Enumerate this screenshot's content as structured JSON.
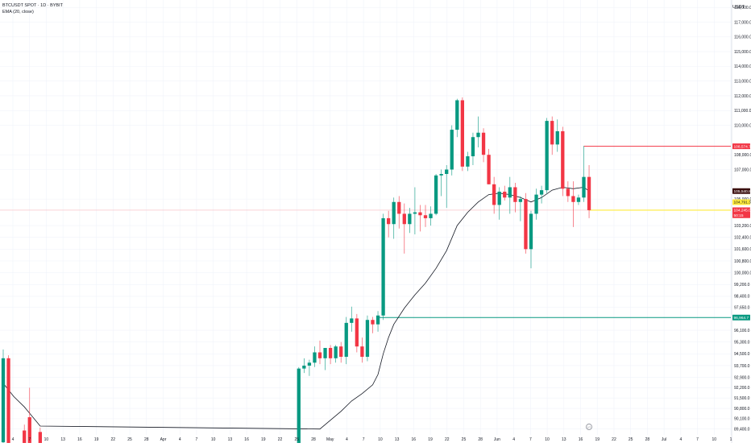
{
  "header": {
    "title": "BTCUSDT SPOT · 1D · BYBIT",
    "indicator": "EMA (20, close)"
  },
  "price_axis": {
    "unit": "USDT",
    "tick_labels": [
      "118,000.0",
      "117,000.0",
      "116,000.0",
      "115,000.0",
      "114,000.0",
      "113,000.0",
      "112,000.0",
      "111,000.0",
      "110,000.0",
      "108,000.0",
      "107,000.0",
      "105,000.0",
      "103,200.0",
      "102,400.0",
      "101,600.0",
      "100,800.0",
      "100,000.0",
      "99,200.0",
      "98,400.0",
      "97,650.0",
      "96,100.0",
      "95,300.0",
      "94,500.0",
      "93,700.0",
      "92,900.0",
      "92,200.0",
      "91,500.0",
      "90,800.0",
      "90,100.0",
      "89,400.0"
    ]
  },
  "time_axis": {
    "labels": [
      "4",
      "7",
      "10",
      "13",
      "16",
      "19",
      "22",
      "25",
      "28",
      "Apr",
      "4",
      "7",
      "10",
      "13",
      "16",
      "19",
      "22",
      "25",
      "28",
      "May",
      "4",
      "7",
      "10",
      "13",
      "16",
      "19",
      "22",
      "25",
      "28",
      "Jun",
      "4",
      "7",
      "10",
      "13",
      "16",
      "19",
      "22",
      "25",
      "28",
      "Jul",
      "4",
      "7",
      "10",
      "1"
    ]
  },
  "price_tags": [
    {
      "text": "108,574.7",
      "value": 108574.7,
      "bg": "#f23645"
    },
    {
      "text": "105,540.8",
      "value": 105540.8,
      "bg": "#3a0f0f"
    },
    {
      "text": "104,791.3",
      "value": 104791.3,
      "bg": "#ffeb3b"
    },
    {
      "text": "104,245.0",
      "value": 104245.0,
      "bg": "#f23645"
    },
    {
      "text": "50:15",
      "value": 103900,
      "bg": "#f23645"
    },
    {
      "text": "96,964.7",
      "value": 96964.7,
      "bg": "#089981"
    }
  ],
  "colors": {
    "up": "#089981",
    "down": "#f23645",
    "ema": "#131722",
    "grid": "#f0f3fa",
    "resistance": "#f23645",
    "support": "#089981",
    "last": "#ffeb3b"
  },
  "chart_data": {
    "type": "candlestick",
    "title": "BTCUSDT SPOT · 1D · BYBIT",
    "series_name": "EMA (20, close)",
    "grid": true,
    "ylim": [
      89000,
      118500
    ],
    "levels": [
      {
        "name": "resistance",
        "value": 108574.7,
        "color": "#f23645"
      },
      {
        "name": "support",
        "value": 96964.7,
        "color": "#089981"
      },
      {
        "name": "last",
        "value": 104245.0,
        "color": "#ffeb3b"
      }
    ],
    "candles": [
      {
        "x": 0,
        "o": 88500,
        "h": 94800,
        "l": 88200,
        "c": 94200
      },
      {
        "x": 1,
        "o": 94200,
        "h": 94400,
        "l": 88000,
        "c": 88300
      },
      {
        "x": 4,
        "o": 89300,
        "h": 89700,
        "l": 88000,
        "c": 88100
      },
      {
        "x": 5,
        "o": 90200,
        "h": 92200,
        "l": 87900,
        "c": 88000
      },
      {
        "x": 7,
        "o": 89200,
        "h": 89500,
        "l": 88000,
        "c": 88100
      },
      {
        "x": 56,
        "o": 88000,
        "h": 93600,
        "l": 87800,
        "c": 93500
      },
      {
        "x": 57,
        "o": 93500,
        "h": 94200,
        "l": 93200,
        "c": 93700
      },
      {
        "x": 58,
        "o": 93700,
        "h": 94100,
        "l": 93000,
        "c": 93900
      },
      {
        "x": 59,
        "o": 93900,
        "h": 95000,
        "l": 93600,
        "c": 94600
      },
      {
        "x": 60,
        "o": 94600,
        "h": 95400,
        "l": 93800,
        "c": 94200
      },
      {
        "x": 61,
        "o": 94200,
        "h": 94900,
        "l": 93400,
        "c": 94900
      },
      {
        "x": 62,
        "o": 94900,
        "h": 95100,
        "l": 93800,
        "c": 94200
      },
      {
        "x": 63,
        "o": 94200,
        "h": 95100,
        "l": 93900,
        "c": 95000
      },
      {
        "x": 64,
        "o": 95000,
        "h": 95300,
        "l": 93900,
        "c": 94300
      },
      {
        "x": 65,
        "o": 94300,
        "h": 97000,
        "l": 93800,
        "c": 96600
      },
      {
        "x": 66,
        "o": 96600,
        "h": 97700,
        "l": 96000,
        "c": 96900
      },
      {
        "x": 67,
        "o": 96900,
        "h": 97200,
        "l": 94600,
        "c": 95000
      },
      {
        "x": 68,
        "o": 95000,
        "h": 95600,
        "l": 93900,
        "c": 94300
      },
      {
        "x": 69,
        "o": 94300,
        "h": 97100,
        "l": 94000,
        "c": 96800
      },
      {
        "x": 70,
        "o": 96800,
        "h": 97000,
        "l": 95900,
        "c": 96500
      },
      {
        "x": 71,
        "o": 96500,
        "h": 97400,
        "l": 96000,
        "c": 97100
      },
      {
        "x": 72,
        "o": 97100,
        "h": 104000,
        "l": 96800,
        "c": 103700
      },
      {
        "x": 73,
        "o": 103700,
        "h": 104200,
        "l": 102400,
        "c": 103300
      },
      {
        "x": 74,
        "o": 103300,
        "h": 105100,
        "l": 102300,
        "c": 104800
      },
      {
        "x": 75,
        "o": 104800,
        "h": 105200,
        "l": 103000,
        "c": 104000
      },
      {
        "x": 76,
        "o": 104000,
        "h": 104700,
        "l": 101300,
        "c": 103300
      },
      {
        "x": 77,
        "o": 103300,
        "h": 104400,
        "l": 102700,
        "c": 104000
      },
      {
        "x": 78,
        "o": 104000,
        "h": 105800,
        "l": 102600,
        "c": 104100
      },
      {
        "x": 79,
        "o": 104100,
        "h": 104600,
        "l": 102800,
        "c": 103900
      },
      {
        "x": 80,
        "o": 103900,
        "h": 104600,
        "l": 103100,
        "c": 103700
      },
      {
        "x": 81,
        "o": 103700,
        "h": 104500,
        "l": 103200,
        "c": 104000
      },
      {
        "x": 82,
        "o": 104000,
        "h": 106700,
        "l": 103900,
        "c": 106600
      },
      {
        "x": 83,
        "o": 106600,
        "h": 107000,
        "l": 105200,
        "c": 106700
      },
      {
        "x": 84,
        "o": 106700,
        "h": 107300,
        "l": 104400,
        "c": 107000
      },
      {
        "x": 85,
        "o": 107000,
        "h": 110000,
        "l": 106600,
        "c": 109700
      },
      {
        "x": 86,
        "o": 109700,
        "h": 111800,
        "l": 109200,
        "c": 111700
      },
      {
        "x": 87,
        "o": 111700,
        "h": 111900,
        "l": 106900,
        "c": 107200
      },
      {
        "x": 88,
        "o": 107200,
        "h": 108200,
        "l": 106900,
        "c": 107900
      },
      {
        "x": 89,
        "o": 107900,
        "h": 109500,
        "l": 107300,
        "c": 109200
      },
      {
        "x": 90,
        "o": 109200,
        "h": 110600,
        "l": 108500,
        "c": 109500
      },
      {
        "x": 91,
        "o": 109500,
        "h": 109800,
        "l": 107500,
        "c": 108000
      },
      {
        "x": 92,
        "o": 108000,
        "h": 108400,
        "l": 106000,
        "c": 106000
      },
      {
        "x": 93,
        "o": 106000,
        "h": 106500,
        "l": 104000,
        "c": 104600
      },
      {
        "x": 94,
        "o": 104600,
        "h": 105800,
        "l": 103600,
        "c": 105500
      },
      {
        "x": 95,
        "o": 105500,
        "h": 105900,
        "l": 104900,
        "c": 105100
      },
      {
        "x": 96,
        "o": 105100,
        "h": 106500,
        "l": 104000,
        "c": 105800
      },
      {
        "x": 97,
        "o": 105800,
        "h": 106100,
        "l": 104100,
        "c": 104800
      },
      {
        "x": 98,
        "o": 104800,
        "h": 105200,
        "l": 103500,
        "c": 105000
      },
      {
        "x": 99,
        "o": 105000,
        "h": 105400,
        "l": 101300,
        "c": 101600
      },
      {
        "x": 100,
        "o": 101600,
        "h": 104200,
        "l": 100300,
        "c": 104000
      },
      {
        "x": 101,
        "o": 104000,
        "h": 105700,
        "l": 103600,
        "c": 105300
      },
      {
        "x": 102,
        "o": 105300,
        "h": 105900,
        "l": 104700,
        "c": 105600
      },
      {
        "x": 103,
        "o": 105600,
        "h": 110500,
        "l": 105400,
        "c": 110300
      },
      {
        "x": 104,
        "o": 110300,
        "h": 110600,
        "l": 108000,
        "c": 108700
      },
      {
        "x": 105,
        "o": 108700,
        "h": 110400,
        "l": 108200,
        "c": 109600
      },
      {
        "x": 106,
        "o": 109600,
        "h": 109900,
        "l": 105200,
        "c": 105700
      },
      {
        "x": 107,
        "o": 105700,
        "h": 106200,
        "l": 104800,
        "c": 105200
      },
      {
        "x": 108,
        "o": 105200,
        "h": 106200,
        "l": 103100,
        "c": 104800
      },
      {
        "x": 109,
        "o": 104800,
        "h": 105300,
        "l": 104600,
        "c": 105100
      },
      {
        "x": 110,
        "o": 105100,
        "h": 108600,
        "l": 104800,
        "c": 106500
      },
      {
        "x": 111,
        "o": 106500,
        "h": 107300,
        "l": 103700,
        "c": 104245
      }
    ],
    "ema": [
      {
        "x": 0,
        "y": 92500
      },
      {
        "x": 2,
        "y": 91600
      },
      {
        "x": 4,
        "y": 90900
      },
      {
        "x": 7,
        "y": 89600
      },
      {
        "x": 60,
        "y": 89400
      },
      {
        "x": 62,
        "y": 90000
      },
      {
        "x": 64,
        "y": 90600
      },
      {
        "x": 66,
        "y": 91300
      },
      {
        "x": 68,
        "y": 91800
      },
      {
        "x": 70,
        "y": 92400
      },
      {
        "x": 71,
        "y": 93100
      },
      {
        "x": 72,
        "y": 94500
      },
      {
        "x": 73,
        "y": 95600
      },
      {
        "x": 74,
        "y": 96500
      },
      {
        "x": 76,
        "y": 97600
      },
      {
        "x": 78,
        "y": 98500
      },
      {
        "x": 80,
        "y": 99300
      },
      {
        "x": 82,
        "y": 100300
      },
      {
        "x": 84,
        "y": 101500
      },
      {
        "x": 86,
        "y": 103200
      },
      {
        "x": 88,
        "y": 104100
      },
      {
        "x": 90,
        "y": 104800
      },
      {
        "x": 92,
        "y": 105300
      },
      {
        "x": 94,
        "y": 105400
      },
      {
        "x": 96,
        "y": 105300
      },
      {
        "x": 98,
        "y": 105100
      },
      {
        "x": 100,
        "y": 104800
      },
      {
        "x": 102,
        "y": 105100
      },
      {
        "x": 104,
        "y": 105600
      },
      {
        "x": 106,
        "y": 105800
      },
      {
        "x": 108,
        "y": 105700
      },
      {
        "x": 110,
        "y": 105800
      },
      {
        "x": 111,
        "y": 105540.8
      }
    ]
  }
}
